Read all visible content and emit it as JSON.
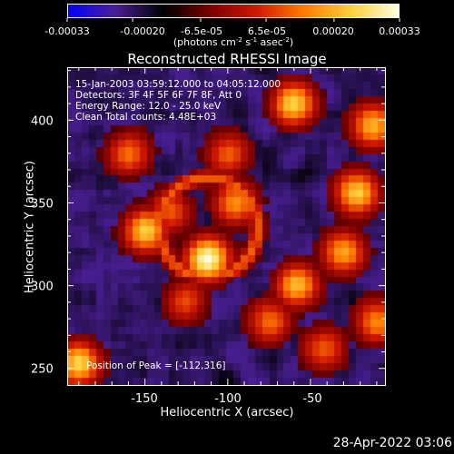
{
  "colorbar": {
    "tick_labels": [
      "-0.00033",
      "-0.00020",
      "-6.5e-05",
      "6.5e-05",
      "0.00020",
      "0.00033"
    ],
    "units_text": "(photons cm",
    "units_exp1": "-2",
    "units_mid": " s",
    "units_exp2": "-1",
    "units_end": " asec",
    "units_exp3": "-2",
    "units_close": ")",
    "colors": [
      "#0000ff",
      "#4a1f96",
      "#000000",
      "#7a0000",
      "#d01800",
      "#ff7a00",
      "#ffd040",
      "#ffffe0"
    ]
  },
  "plot": {
    "title": "Reconstructed RHESSI Image",
    "info_lines": [
      "15-Jan-2003 03:59:12.000 to 04:05:12.000",
      "Detectors: 3F 4F 5F 6F 7F 8F, Att 0",
      "Energy Range: 12.0 - 25.0 keV",
      "Clean    Total counts: 4.48E+03"
    ],
    "peak_label": "Position of Peak = [-112,316]",
    "x_axis_title": "Heliocentric X (arcsec)",
    "y_axis_title": "Heliocentric Y (arcsec)",
    "x_ticks": [
      "-150",
      "-100",
      "-50"
    ],
    "y_ticks": [
      "400",
      "350",
      "300",
      "250"
    ]
  },
  "footer": {
    "timestamp": "28-Apr-2022 03:06"
  },
  "chart_data": {
    "type": "heatmap",
    "title": "Reconstructed RHESSI Image",
    "xlabel": "Heliocentric X (arcsec)",
    "ylabel": "Heliocentric Y (arcsec)",
    "xlim": [
      -197,
      -5
    ],
    "ylim": [
      240,
      432
    ],
    "x_ticks": [
      -150,
      -100,
      -50
    ],
    "y_ticks": [
      400,
      350,
      300,
      250
    ],
    "colorbar_range": [
      -0.00033,
      0.00033
    ],
    "colorbar_ticks": [
      -0.00033,
      -0.0002,
      -6.5e-05,
      6.5e-05,
      0.0002,
      0.00033
    ],
    "peak": [
      -112,
      316
    ],
    "sources": [
      {
        "x": -112,
        "y": 316,
        "level": 1.0
      },
      {
        "x": -150,
        "y": 333,
        "level": 0.78
      },
      {
        "x": -22,
        "y": 356,
        "level": 0.8
      },
      {
        "x": -12,
        "y": 397,
        "level": 0.72
      },
      {
        "x": -60,
        "y": 410,
        "level": 0.8
      },
      {
        "x": -58,
        "y": 300,
        "level": 0.72
      },
      {
        "x": -30,
        "y": 320,
        "level": 0.68
      },
      {
        "x": -190,
        "y": 253,
        "level": 0.82
      },
      {
        "x": -160,
        "y": 380,
        "level": 0.55
      },
      {
        "x": -95,
        "y": 350,
        "level": 0.62
      },
      {
        "x": -75,
        "y": 278,
        "level": 0.55
      },
      {
        "x": -42,
        "y": 262,
        "level": 0.5
      },
      {
        "x": -125,
        "y": 290,
        "level": 0.45
      },
      {
        "x": -135,
        "y": 345,
        "level": 0.5
      },
      {
        "x": -10,
        "y": 278,
        "level": 0.6
      },
      {
        "x": -100,
        "y": 380,
        "level": 0.5
      }
    ]
  }
}
